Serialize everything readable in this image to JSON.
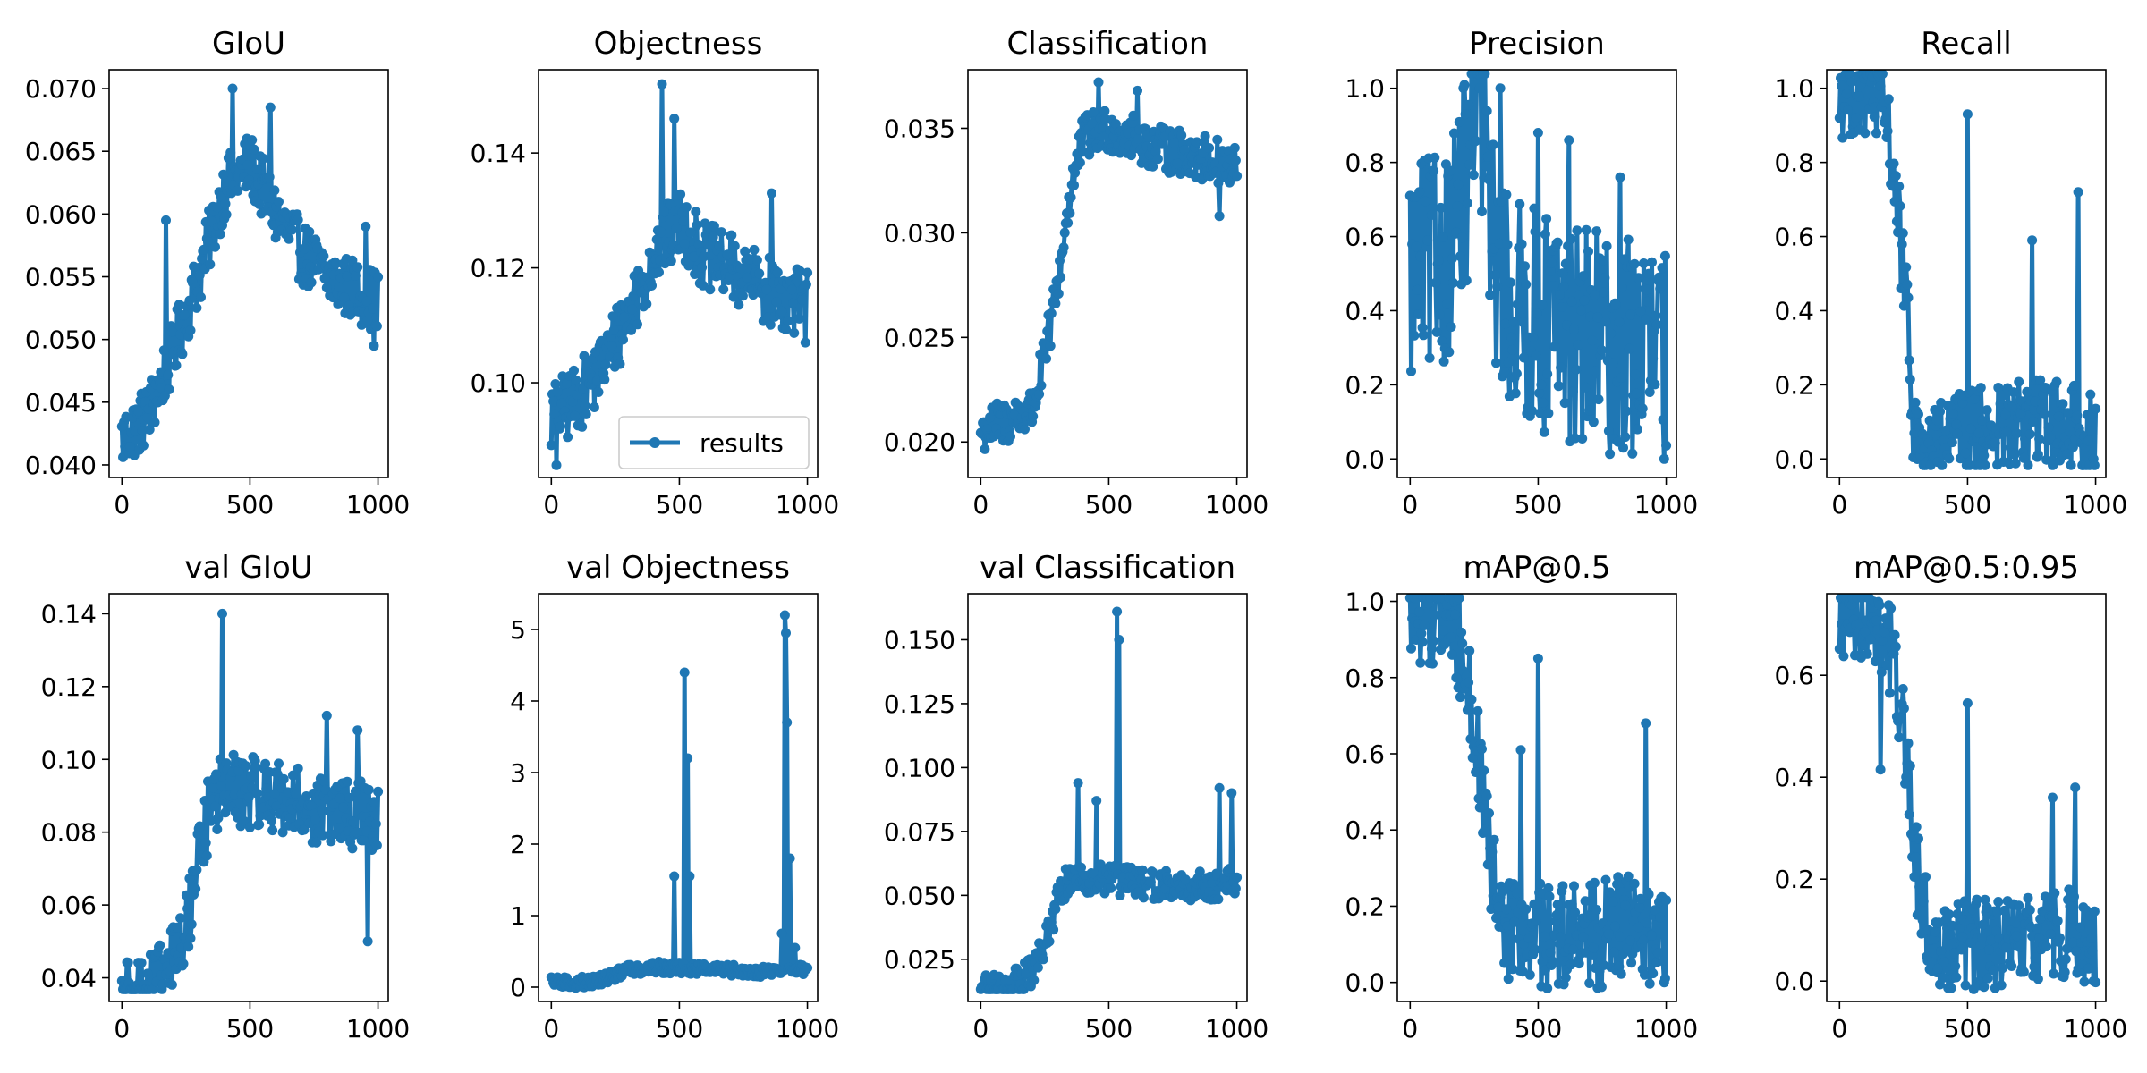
{
  "chart_data": {
    "type": "line",
    "legend": {
      "label": "results",
      "placement": "lower-right",
      "panel": 1
    },
    "color": "#1f77b4",
    "panels": [
      {
        "title": "GIoU",
        "xlim": [
          -50,
          1040
        ],
        "ylim": [
          0.039,
          0.0715
        ],
        "xticks": [
          0,
          500,
          1000
        ],
        "yticks": [
          0.04,
          0.045,
          0.05,
          0.055,
          0.06,
          0.065,
          0.07
        ],
        "tick_labels_y": [
          "0.040",
          "0.045",
          "0.050",
          "0.055",
          "0.060",
          "0.065",
          "0.070"
        ],
        "profile": [
          [
            0,
            0.042
          ],
          [
            100,
            0.044
          ],
          [
            200,
            0.049
          ],
          [
            300,
            0.055
          ],
          [
            400,
            0.062
          ],
          [
            500,
            0.064
          ],
          [
            600,
            0.06
          ],
          [
            700,
            0.057
          ],
          [
            800,
            0.055
          ],
          [
            900,
            0.054
          ],
          [
            1000,
            0.053
          ]
        ],
        "noise": 0.0025,
        "spikes": [
          [
            170,
            0.0595
          ],
          [
            430,
            0.07
          ],
          [
            580,
            0.0685
          ],
          [
            950,
            0.059
          ],
          [
            985,
            0.0495
          ]
        ]
      },
      {
        "title": "Objectness",
        "xlim": [
          -50,
          1040
        ],
        "ylim": [
          0.0835,
          0.1545
        ],
        "xticks": [
          0,
          500,
          1000
        ],
        "yticks": [
          0.1,
          0.12,
          0.14
        ],
        "tick_labels_y": [
          "0.10",
          "0.12",
          "0.14"
        ],
        "profile": [
          [
            0,
            0.094
          ],
          [
            100,
            0.097
          ],
          [
            200,
            0.103
          ],
          [
            300,
            0.112
          ],
          [
            400,
            0.122
          ],
          [
            500,
            0.128
          ],
          [
            600,
            0.122
          ],
          [
            700,
            0.12
          ],
          [
            800,
            0.117
          ],
          [
            900,
            0.115
          ],
          [
            1000,
            0.114
          ]
        ],
        "noise": 0.006,
        "spikes": [
          [
            20,
            0.0845
          ],
          [
            430,
            0.152
          ],
          [
            480,
            0.146
          ],
          [
            860,
            0.133
          ],
          [
            990,
            0.107
          ]
        ]
      },
      {
        "title": "Classification",
        "xlim": [
          -50,
          1040
        ],
        "ylim": [
          0.0183,
          0.0378
        ],
        "xticks": [
          0,
          500,
          1000
        ],
        "yticks": [
          0.02,
          0.025,
          0.03,
          0.035
        ],
        "tick_labels_y": [
          "0.020",
          "0.025",
          "0.030",
          "0.035"
        ],
        "profile": [
          [
            0,
            0.0205
          ],
          [
            100,
            0.021
          ],
          [
            200,
            0.0215
          ],
          [
            250,
            0.024
          ],
          [
            300,
            0.0275
          ],
          [
            350,
            0.032
          ],
          [
            400,
            0.0345
          ],
          [
            500,
            0.035
          ],
          [
            600,
            0.0345
          ],
          [
            700,
            0.034
          ],
          [
            800,
            0.0338
          ],
          [
            900,
            0.0335
          ],
          [
            1000,
            0.033
          ]
        ],
        "noise": 0.0011,
        "spikes": [
          [
            460,
            0.0372
          ],
          [
            610,
            0.0368
          ],
          [
            930,
            0.0308
          ]
        ]
      },
      {
        "title": "Precision",
        "xlim": [
          -50,
          1040
        ],
        "ylim": [
          -0.05,
          1.05
        ],
        "xticks": [
          0,
          500,
          1000
        ],
        "yticks": [
          0.0,
          0.2,
          0.4,
          0.6,
          0.8,
          1.0
        ],
        "tick_labels_y": [
          "0.0",
          "0.2",
          "0.4",
          "0.6",
          "0.8",
          "1.0"
        ],
        "profile": [
          [
            0,
            0.5
          ],
          [
            50,
            0.51
          ],
          [
            100,
            0.53
          ],
          [
            150,
            0.58
          ],
          [
            200,
            0.68
          ],
          [
            250,
            0.88
          ],
          [
            290,
            0.98
          ],
          [
            310,
            0.6
          ],
          [
            400,
            0.4
          ],
          [
            600,
            0.35
          ],
          [
            800,
            0.3
          ],
          [
            1000,
            0.3
          ]
        ],
        "noise": 0.3,
        "spikes": [
          [
            270,
            1.0
          ],
          [
            350,
            1.0
          ],
          [
            500,
            0.88
          ],
          [
            620,
            0.86
          ],
          [
            820,
            0.76
          ],
          [
            990,
            0.0
          ]
        ]
      },
      {
        "title": "Recall",
        "xlim": [
          -50,
          1040
        ],
        "ylim": [
          -0.05,
          1.05
        ],
        "xticks": [
          0,
          500,
          1000
        ],
        "yticks": [
          0.0,
          0.2,
          0.4,
          0.6,
          0.8,
          1.0
        ],
        "tick_labels_y": [
          "0.0",
          "0.2",
          "0.4",
          "0.6",
          "0.8",
          "1.0"
        ],
        "profile": [
          [
            0,
            0.985
          ],
          [
            100,
            0.985
          ],
          [
            150,
            0.97
          ],
          [
            200,
            0.85
          ],
          [
            250,
            0.5
          ],
          [
            290,
            0.1
          ],
          [
            320,
            0.02
          ],
          [
            400,
            0.05
          ],
          [
            600,
            0.08
          ],
          [
            800,
            0.1
          ],
          [
            1000,
            0.07
          ]
        ],
        "noise": 0.12,
        "spikes": [
          [
            500,
            0.93
          ],
          [
            750,
            0.59
          ],
          [
            930,
            0.72
          ],
          [
            990,
            0.0
          ]
        ]
      },
      {
        "title": "val GIoU",
        "xlim": [
          -50,
          1040
        ],
        "ylim": [
          0.0335,
          0.1455
        ],
        "xticks": [
          0,
          500,
          1000
        ],
        "yticks": [
          0.04,
          0.06,
          0.08,
          0.1,
          0.12,
          0.14
        ],
        "tick_labels_y": [
          "0.04",
          "0.06",
          "0.08",
          "0.10",
          "0.12",
          "0.14"
        ],
        "profile": [
          [
            0,
            0.037
          ],
          [
            100,
            0.037
          ],
          [
            150,
            0.039
          ],
          [
            200,
            0.045
          ],
          [
            250,
            0.052
          ],
          [
            300,
            0.075
          ],
          [
            350,
            0.088
          ],
          [
            400,
            0.092
          ],
          [
            600,
            0.09
          ],
          [
            800,
            0.085
          ],
          [
            1000,
            0.085
          ]
        ],
        "noise": 0.01,
        "spikes": [
          [
            390,
            0.14
          ],
          [
            800,
            0.112
          ],
          [
            920,
            0.108
          ],
          [
            960,
            0.05
          ]
        ]
      },
      {
        "title": "val Objectness",
        "xlim": [
          -50,
          1040
        ],
        "ylim": [
          -0.2,
          5.5
        ],
        "xticks": [
          0,
          500,
          1000
        ],
        "yticks": [
          0,
          1,
          2,
          3,
          4,
          5
        ],
        "tick_labels_y": [
          "0",
          "1",
          "2",
          "3",
          "4",
          "5"
        ],
        "profile": [
          [
            0,
            0.06
          ],
          [
            100,
            0.06
          ],
          [
            200,
            0.1
          ],
          [
            300,
            0.25
          ],
          [
            400,
            0.28
          ],
          [
            600,
            0.25
          ],
          [
            800,
            0.22
          ],
          [
            1000,
            0.25
          ]
        ],
        "noise": 0.08,
        "spikes": [
          [
            520,
            4.4
          ],
          [
            530,
            3.2
          ],
          [
            540,
            1.55
          ],
          [
            480,
            1.55
          ],
          [
            900,
            0.75
          ],
          [
            910,
            5.2
          ],
          [
            915,
            4.95
          ],
          [
            920,
            3.7
          ],
          [
            930,
            1.8
          ],
          [
            950,
            0.55
          ]
        ]
      },
      {
        "title": "val Classification",
        "xlim": [
          -50,
          1040
        ],
        "ylim": [
          0.0085,
          0.168
        ],
        "xticks": [
          0,
          500,
          1000
        ],
        "yticks": [
          0.025,
          0.05,
          0.075,
          0.1,
          0.125,
          0.15
        ],
        "tick_labels_y": [
          "0.025",
          "0.050",
          "0.075",
          "0.100",
          "0.125",
          "0.150"
        ],
        "profile": [
          [
            0,
            0.014
          ],
          [
            100,
            0.014
          ],
          [
            150,
            0.016
          ],
          [
            200,
            0.02
          ],
          [
            250,
            0.03
          ],
          [
            300,
            0.048
          ],
          [
            350,
            0.058
          ],
          [
            400,
            0.057
          ],
          [
            600,
            0.055
          ],
          [
            800,
            0.053
          ],
          [
            1000,
            0.055
          ]
        ],
        "noise": 0.006,
        "spikes": [
          [
            380,
            0.094
          ],
          [
            530,
            0.161
          ],
          [
            540,
            0.15
          ],
          [
            450,
            0.087
          ],
          [
            930,
            0.092
          ],
          [
            980,
            0.09
          ]
        ]
      },
      {
        "title": "mAP@0.5",
        "xlim": [
          -50,
          1040
        ],
        "ylim": [
          -0.05,
          1.02
        ],
        "xticks": [
          0,
          500,
          1000
        ],
        "yticks": [
          0.0,
          0.2,
          0.4,
          0.6,
          0.8,
          1.0
        ],
        "tick_labels_y": [
          "0.0",
          "0.2",
          "0.4",
          "0.6",
          "0.8",
          "1.0"
        ],
        "profile": [
          [
            0,
            0.975
          ],
          [
            100,
            0.975
          ],
          [
            150,
            0.96
          ],
          [
            200,
            0.88
          ],
          [
            250,
            0.7
          ],
          [
            300,
            0.35
          ],
          [
            350,
            0.15
          ],
          [
            500,
            0.12
          ],
          [
            700,
            0.12
          ],
          [
            900,
            0.15
          ],
          [
            1000,
            0.1
          ]
        ],
        "noise": 0.14,
        "spikes": [
          [
            500,
            0.85
          ],
          [
            430,
            0.61
          ],
          [
            920,
            0.68
          ],
          [
            990,
            0.0
          ]
        ]
      },
      {
        "title": "mAP@0.5:0.95",
        "xlim": [
          -50,
          1040
        ],
        "ylim": [
          -0.04,
          0.76
        ],
        "xticks": [
          0,
          500,
          1000
        ],
        "yticks": [
          0.0,
          0.2,
          0.4,
          0.6
        ],
        "tick_labels_y": [
          "0.0",
          "0.2",
          "0.4",
          "0.6"
        ],
        "profile": [
          [
            0,
            0.72
          ],
          [
            100,
            0.72
          ],
          [
            150,
            0.71
          ],
          [
            200,
            0.65
          ],
          [
            250,
            0.5
          ],
          [
            300,
            0.22
          ],
          [
            350,
            0.08
          ],
          [
            500,
            0.07
          ],
          [
            700,
            0.07
          ],
          [
            900,
            0.1
          ],
          [
            1000,
            0.05
          ]
        ],
        "noise": 0.09,
        "spikes": [
          [
            160,
            0.415
          ],
          [
            500,
            0.545
          ],
          [
            830,
            0.36
          ],
          [
            920,
            0.38
          ],
          [
            990,
            0.0
          ]
        ]
      }
    ]
  }
}
